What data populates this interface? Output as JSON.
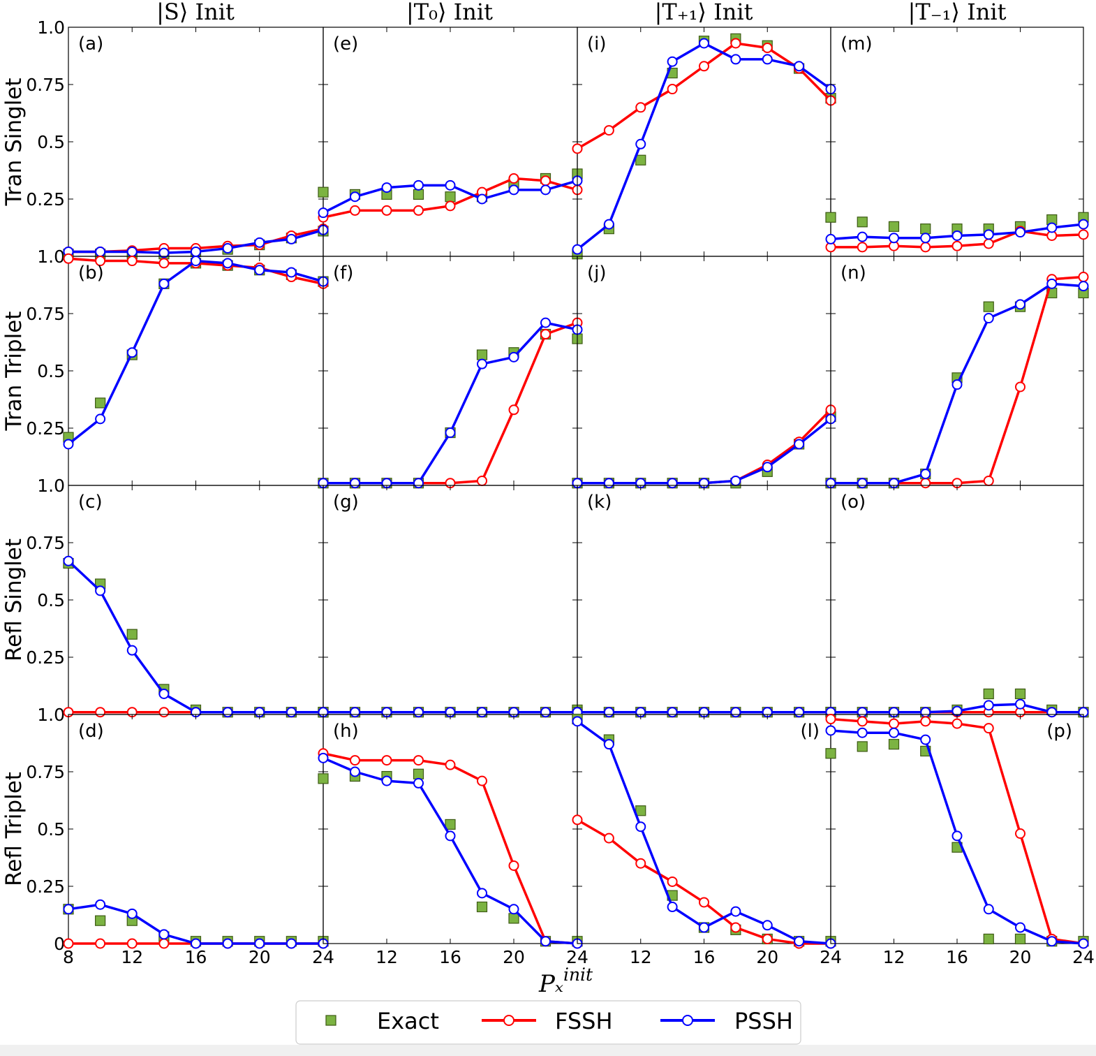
{
  "colors": {
    "exact": "#7cb342",
    "exact_edge": "#3d5a14",
    "fssh": "#ff0000",
    "pssh": "#0000ff"
  },
  "column_titles": [
    "|S⟩ Init",
    "|T₀⟩ Init",
    "|T₊₁⟩ Init",
    "|T₋₁⟩ Init"
  ],
  "row_labels": [
    "Tran Singlet",
    "Tran Triplet",
    "Refl Singlet",
    "Refl Triplet"
  ],
  "xlabel": "Pₓ",
  "xlabel_sup": "init",
  "ytick_labels": {
    "rows_0_to_2": [
      "1.0",
      "0.25",
      "0.5",
      "0.75",
      "1.0"
    ],
    "row_3": [
      "0",
      "0.25",
      "0.5",
      "0.75",
      "1.0"
    ]
  },
  "xtick_labels": [
    [
      "8",
      "12",
      "16",
      "20",
      "24"
    ],
    [
      "",
      "12",
      "16",
      "20",
      "24"
    ],
    [
      "",
      "12",
      "16",
      "20",
      "24"
    ],
    [
      "",
      "12",
      "16",
      "20",
      "24"
    ]
  ],
  "legend": {
    "exact": "Exact",
    "fssh": "FSSH",
    "pssh": "PSSH"
  },
  "chart_data": {
    "type": "line",
    "layout": "4x4 grid of panels",
    "x": [
      8,
      10,
      12,
      14,
      16,
      18,
      20,
      22,
      24
    ],
    "xlim": [
      8,
      24
    ],
    "ylim": [
      0,
      1
    ],
    "grid": false,
    "legend_position": "bottom",
    "panels": [
      {
        "label": "(a)",
        "row": 0,
        "col": 0,
        "exact": [
          0.01,
          0.01,
          0.01,
          0.01,
          0.02,
          0.03,
          0.05,
          0.08,
          0.11
        ],
        "fssh": [
          0.02,
          0.02,
          0.025,
          0.035,
          0.035,
          0.045,
          0.05,
          0.09,
          0.12
        ],
        "pssh": [
          0.02,
          0.02,
          0.02,
          0.015,
          0.02,
          0.035,
          0.06,
          0.075,
          0.115
        ]
      },
      {
        "label": "(e)",
        "row": 0,
        "col": 1,
        "exact": [
          0.28,
          0.27,
          0.27,
          0.27,
          0.26,
          0.26,
          0.32,
          0.34,
          0.36
        ],
        "fssh": [
          0.17,
          0.2,
          0.2,
          0.2,
          0.22,
          0.28,
          0.34,
          0.33,
          0.29
        ],
        "pssh": [
          0.19,
          0.26,
          0.3,
          0.31,
          0.31,
          0.25,
          0.29,
          0.29,
          0.33
        ]
      },
      {
        "label": "(i)",
        "row": 0,
        "col": 2,
        "exact": [
          0.01,
          0.12,
          0.42,
          0.8,
          0.94,
          0.95,
          0.92,
          0.82,
          0.69
        ],
        "fssh": [
          0.47,
          0.55,
          0.65,
          0.73,
          0.83,
          0.93,
          0.91,
          0.82,
          0.68
        ],
        "pssh": [
          0.03,
          0.14,
          0.49,
          0.85,
          0.93,
          0.86,
          0.86,
          0.83,
          0.73
        ]
      },
      {
        "label": "(m)",
        "row": 0,
        "col": 3,
        "exact": [
          0.17,
          0.15,
          0.13,
          0.12,
          0.12,
          0.12,
          0.13,
          0.16,
          0.17
        ],
        "fssh": [
          0.04,
          0.04,
          0.045,
          0.04,
          0.045,
          0.055,
          0.11,
          0.09,
          0.095
        ],
        "pssh": [
          0.075,
          0.085,
          0.08,
          0.08,
          0.09,
          0.095,
          0.105,
          0.125,
          0.14
        ]
      },
      {
        "label": "(b)",
        "row": 1,
        "col": 0,
        "exact": [
          0.21,
          0.36,
          0.57,
          0.88,
          0.97,
          0.96,
          0.94,
          0.92,
          0.89
        ],
        "fssh": [
          0.99,
          0.98,
          0.98,
          0.97,
          0.97,
          0.96,
          0.95,
          0.91,
          0.88
        ],
        "pssh": [
          0.18,
          0.29,
          0.58,
          0.88,
          0.98,
          0.97,
          0.94,
          0.93,
          0.89
        ]
      },
      {
        "label": "(f)",
        "row": 1,
        "col": 1,
        "exact": [
          0.01,
          0.01,
          0.01,
          0.01,
          0.23,
          0.57,
          0.58,
          0.66,
          0.64
        ],
        "fssh": [
          0.01,
          0.01,
          0.01,
          0.01,
          0.01,
          0.02,
          0.33,
          0.66,
          0.71
        ],
        "pssh": [
          0.01,
          0.01,
          0.01,
          0.01,
          0.23,
          0.53,
          0.56,
          0.71,
          0.68
        ]
      },
      {
        "label": "(j)",
        "row": 1,
        "col": 2,
        "exact": [
          0.01,
          0.01,
          0.01,
          0.01,
          0.01,
          0.01,
          0.06,
          0.18,
          0.3
        ],
        "fssh": [
          0.01,
          0.01,
          0.01,
          0.01,
          0.01,
          0.02,
          0.09,
          0.19,
          0.33
        ],
        "pssh": [
          0.01,
          0.01,
          0.01,
          0.01,
          0.01,
          0.02,
          0.08,
          0.18,
          0.29
        ]
      },
      {
        "label": "(n)",
        "row": 1,
        "col": 3,
        "exact": [
          0.01,
          0.01,
          0.01,
          0.05,
          0.47,
          0.78,
          0.78,
          0.84,
          0.84
        ],
        "fssh": [
          0.01,
          0.01,
          0.01,
          0.01,
          0.01,
          0.02,
          0.43,
          0.9,
          0.91
        ],
        "pssh": [
          0.01,
          0.01,
          0.01,
          0.05,
          0.44,
          0.73,
          0.79,
          0.88,
          0.87
        ]
      },
      {
        "label": "(c)",
        "row": 2,
        "col": 0,
        "exact": [
          0.66,
          0.57,
          0.35,
          0.11,
          0.02,
          0.01,
          0.01,
          0.01,
          0.01
        ],
        "fssh": [
          0.01,
          0.01,
          0.01,
          0.01,
          0.01,
          0.01,
          0.01,
          0.01,
          0.01
        ],
        "pssh": [
          0.67,
          0.54,
          0.28,
          0.09,
          0.01,
          0.01,
          0.01,
          0.01,
          0.01
        ]
      },
      {
        "label": "(g)",
        "row": 2,
        "col": 1,
        "exact": [
          0.01,
          0.01,
          0.01,
          0.01,
          0.01,
          0.01,
          0.01,
          0.01,
          0.02
        ],
        "fssh": [
          0.01,
          0.01,
          0.01,
          0.01,
          0.01,
          0.01,
          0.01,
          0.01,
          0.01
        ],
        "pssh": [
          0.01,
          0.01,
          0.01,
          0.01,
          0.01,
          0.01,
          0.01,
          0.01,
          0.01
        ]
      },
      {
        "label": "(k)",
        "row": 2,
        "col": 2,
        "exact": [
          0.01,
          0.01,
          0.01,
          0.01,
          0.01,
          0.01,
          0.01,
          0.01,
          0.01
        ],
        "fssh": [
          0.01,
          0.01,
          0.01,
          0.01,
          0.01,
          0.01,
          0.01,
          0.01,
          0.01
        ],
        "pssh": [
          0.01,
          0.01,
          0.01,
          0.01,
          0.01,
          0.01,
          0.01,
          0.01,
          0.01
        ]
      },
      {
        "label": "(o)",
        "row": 2,
        "col": 3,
        "exact": [
          0.01,
          0.01,
          0.01,
          0.01,
          0.02,
          0.09,
          0.09,
          0.02,
          0.01
        ],
        "fssh": [
          0.01,
          0.01,
          0.01,
          0.01,
          0.01,
          0.01,
          0.01,
          0.01,
          0.01
        ],
        "pssh": [
          0.01,
          0.01,
          0.01,
          0.01,
          0.015,
          0.04,
          0.045,
          0.01,
          0.01
        ]
      },
      {
        "label": "(d)",
        "row": 3,
        "col": 0,
        "exact": [
          0.15,
          0.1,
          0.1,
          0.03,
          0.01,
          0.01,
          0.01,
          0.01,
          0.01
        ],
        "fssh": [
          0.0,
          0.0,
          0.0,
          0.0,
          0.0,
          0.0,
          0.0,
          0.0,
          0.0
        ],
        "pssh": [
          0.15,
          0.17,
          0.13,
          0.04,
          0.0,
          0.0,
          0.0,
          0.0,
          0.0
        ]
      },
      {
        "label": "(h)",
        "row": 3,
        "col": 1,
        "exact": [
          0.72,
          0.73,
          0.73,
          0.74,
          0.52,
          0.16,
          0.11,
          0.01,
          0.01
        ],
        "fssh": [
          0.83,
          0.8,
          0.8,
          0.8,
          0.78,
          0.71,
          0.34,
          0.01,
          0.0
        ],
        "pssh": [
          0.81,
          0.75,
          0.71,
          0.7,
          0.47,
          0.22,
          0.15,
          0.01,
          0.0
        ]
      },
      {
        "label": "(l)",
        "row": 3,
        "col": 2,
        "exact": [
          0.98,
          0.89,
          0.58,
          0.21,
          0.07,
          0.06,
          0.02,
          0.01,
          0.01
        ],
        "fssh": [
          0.54,
          0.46,
          0.35,
          0.27,
          0.18,
          0.07,
          0.02,
          0.0,
          0.0
        ],
        "pssh": [
          0.97,
          0.87,
          0.51,
          0.16,
          0.07,
          0.14,
          0.08,
          0.01,
          0.0
        ]
      },
      {
        "label": "(p)",
        "row": 3,
        "col": 3,
        "exact": [
          0.83,
          0.86,
          0.87,
          0.84,
          0.42,
          0.02,
          0.02,
          0.01,
          0.01
        ],
        "fssh": [
          0.98,
          0.97,
          0.96,
          0.97,
          0.96,
          0.94,
          0.48,
          0.02,
          0.0
        ],
        "pssh": [
          0.93,
          0.92,
          0.92,
          0.89,
          0.47,
          0.15,
          0.07,
          0.01,
          0.0
        ]
      }
    ]
  }
}
